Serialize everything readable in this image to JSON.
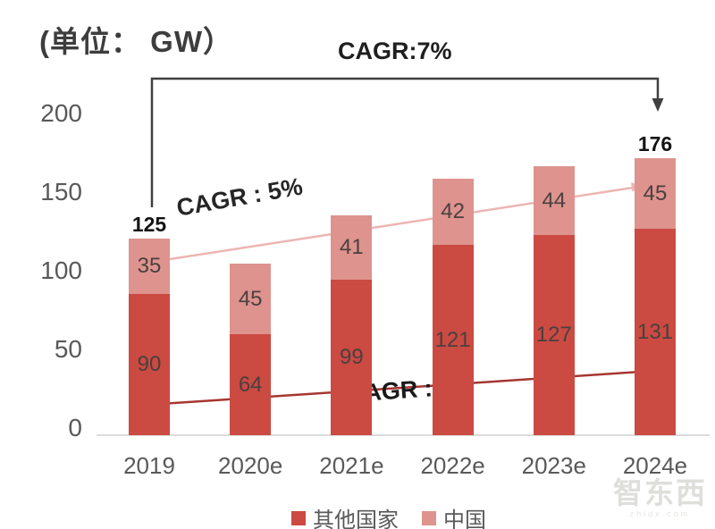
{
  "chart_data": {
    "type": "bar",
    "stacked": true,
    "unit": "GW",
    "unit_label": "(单位： GW）",
    "categories": [
      "2019",
      "2020e",
      "2021e",
      "2022e",
      "2023e",
      "2024e"
    ],
    "series": [
      {
        "name": "其他国家",
        "color": "#CB4A42",
        "values": [
          90,
          64,
          99,
          121,
          127,
          131
        ]
      },
      {
        "name": "中国",
        "color": "#DE938E",
        "values": [
          35,
          45,
          41,
          42,
          44,
          45
        ]
      }
    ],
    "total_labels": [
      {
        "category": "2019",
        "index": 0,
        "value": 125
      },
      {
        "category": "2024e",
        "index": 5,
        "value": 176
      }
    ],
    "y_ticks": [
      0,
      50,
      100,
      150,
      200
    ],
    "ylim": [
      0,
      200
    ],
    "xlabel": "",
    "ylabel": "",
    "grid": false,
    "legend_position": "bottom",
    "annotations": {
      "total_cagr": "CAGR:7%",
      "china_cagr": "CAGR : 5%",
      "other_cagr": "CAGR : 8%"
    },
    "colors": {
      "other_bar": "#CB4A42",
      "china_bar": "#DE938E",
      "china_trend_line": "#ECB5B2",
      "other_trend_line": "#A53631",
      "bracket_arrow": "#404040",
      "axis_line": "#DCDCDC",
      "axis_text": "#595959"
    }
  },
  "watermark": {
    "text": "智东西",
    "subtext": "zhidx.com"
  }
}
